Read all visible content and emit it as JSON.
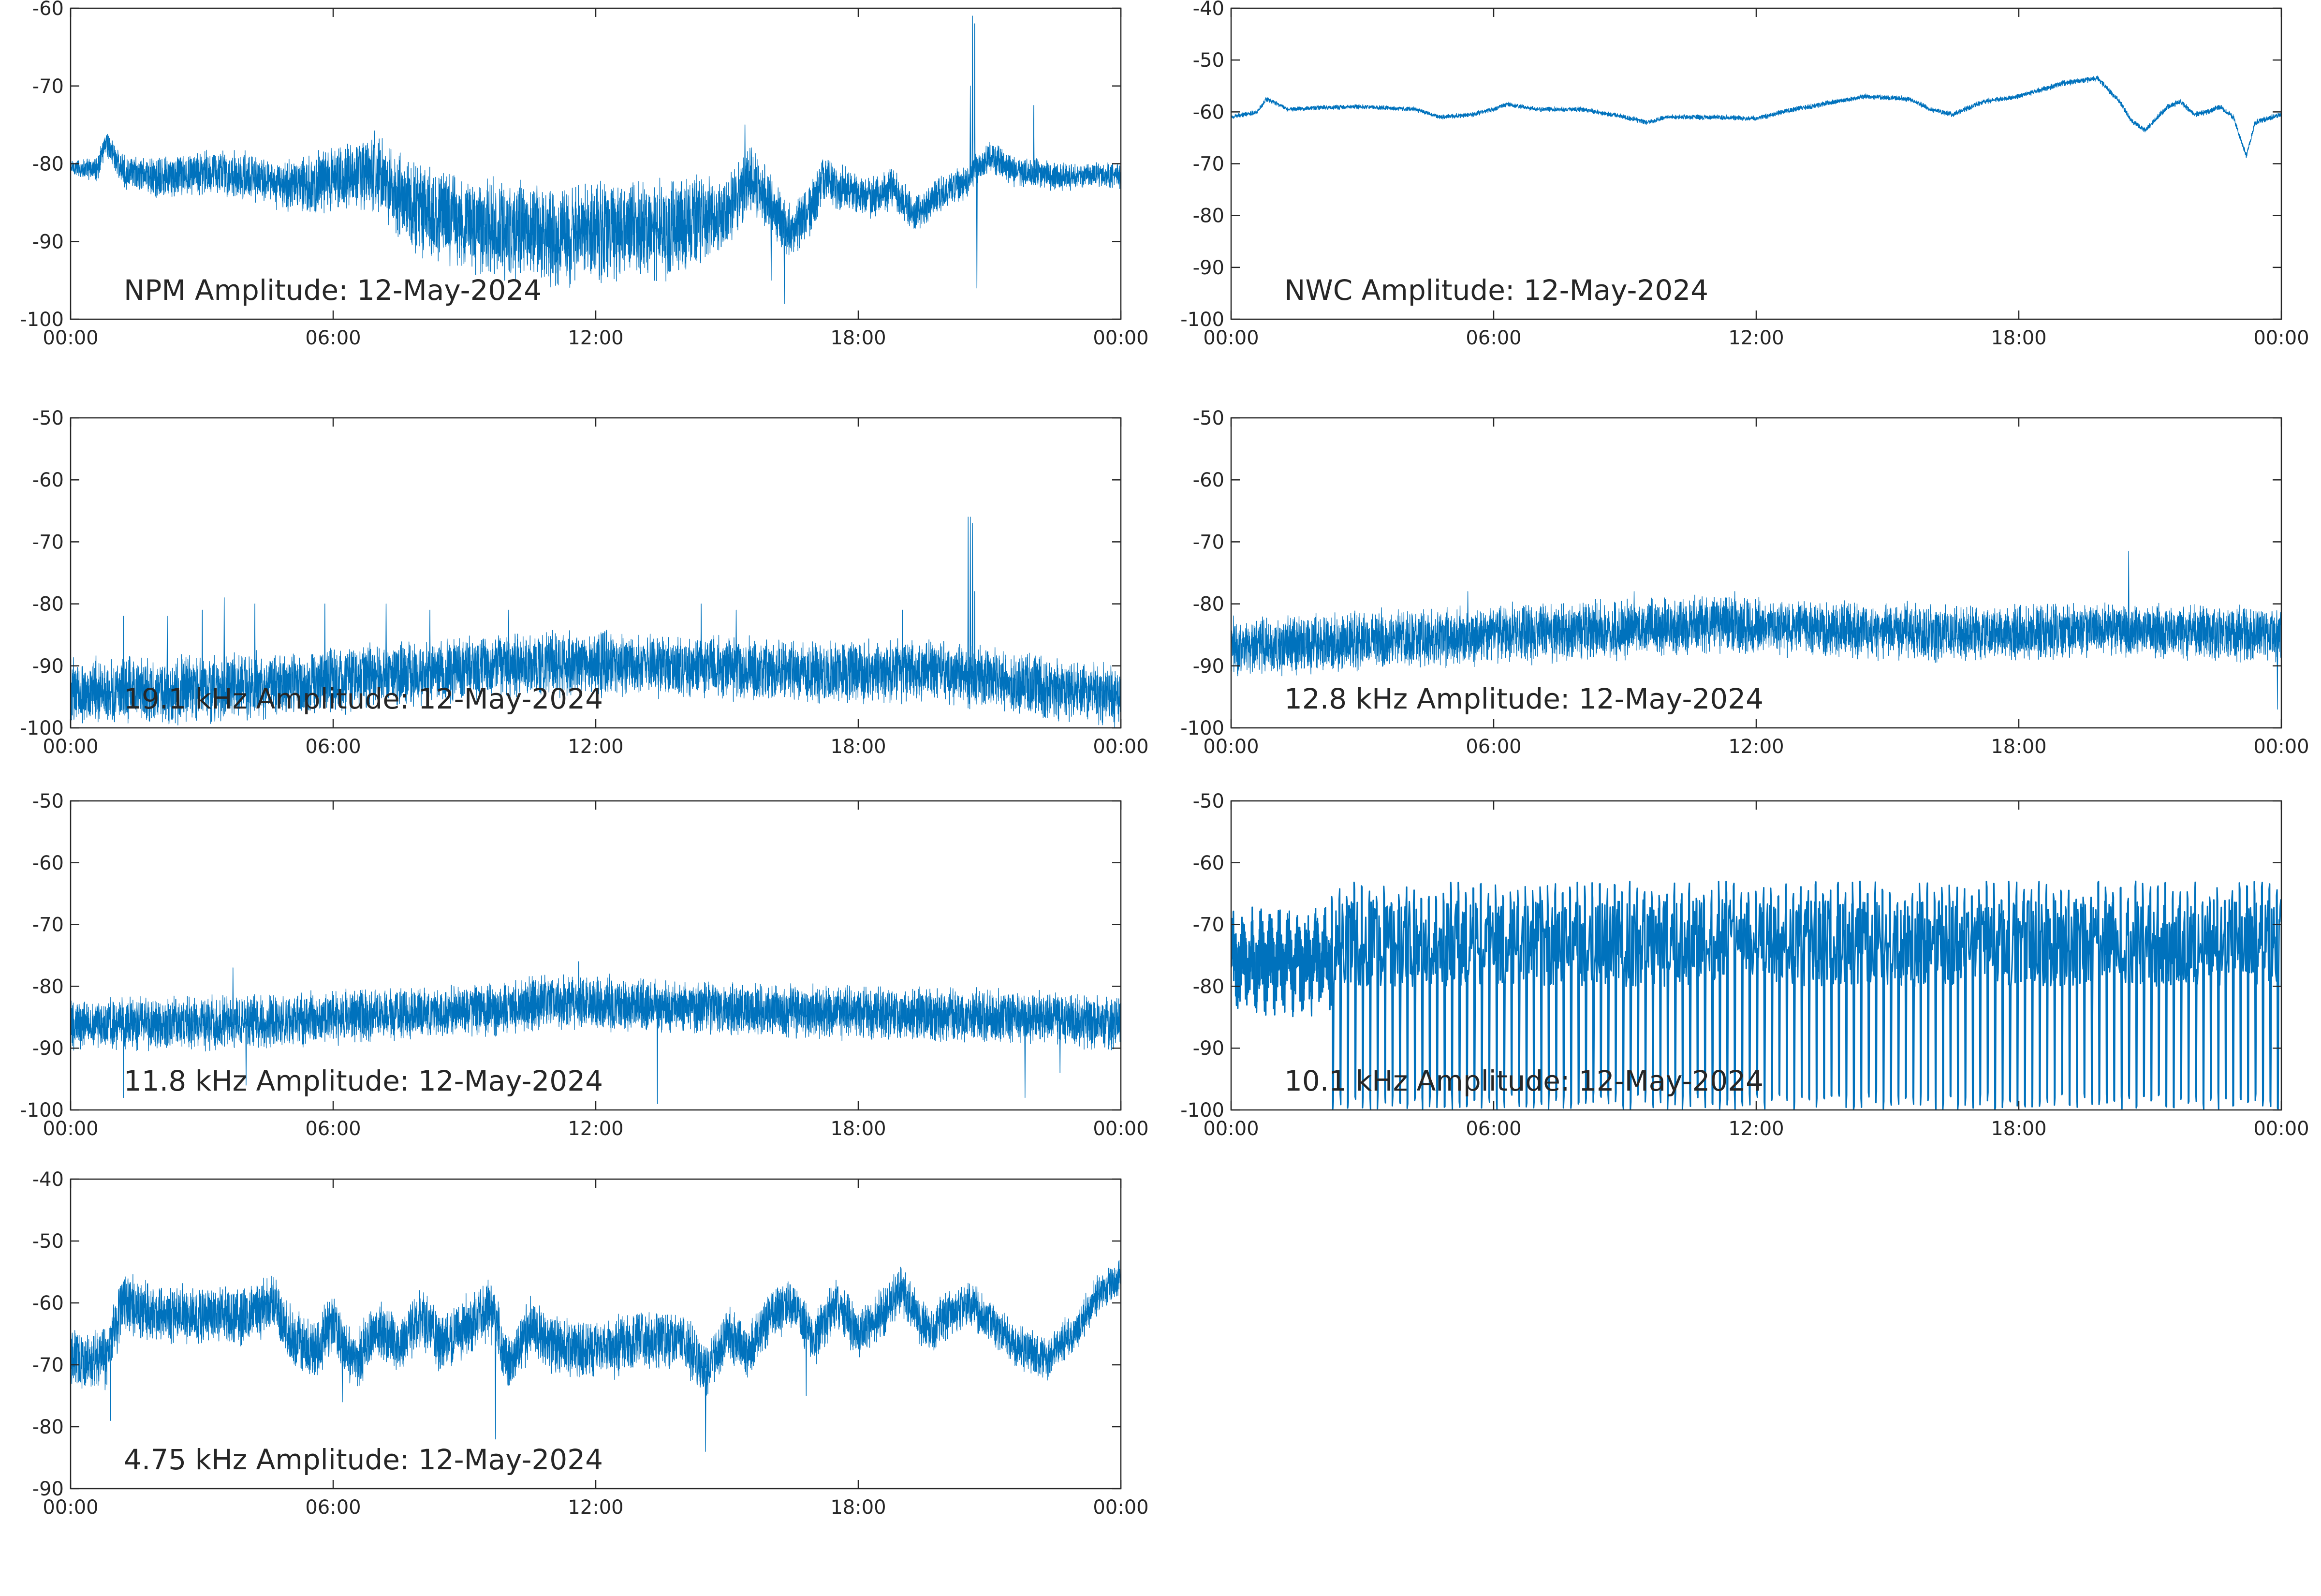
{
  "figure": {
    "line_color": "#0072BD",
    "axis_color": "#262626",
    "background": "#ffffff"
  },
  "chart_data": [
    {
      "id": "npm",
      "type": "line",
      "title": "NPM Amplitude: 12-May-2024",
      "xlabel": "",
      "ylabel": "",
      "xticks": [
        "00:00",
        "06:00",
        "12:00",
        "18:00",
        "00:00"
      ],
      "xlim_hours": [
        0,
        24
      ],
      "ylim": [
        -100,
        -60
      ],
      "yticks": [
        -60,
        -70,
        -80,
        -90,
        -100
      ],
      "grid": false,
      "series": [
        {
          "baseline": [
            [
              0,
              -80.5
            ],
            [
              0.6,
              -80.8
            ],
            [
              0.8,
              -77
            ],
            [
              1.2,
              -81
            ],
            [
              2,
              -82
            ],
            [
              3,
              -81
            ],
            [
              4,
              -81.5
            ],
            [
              5,
              -83
            ],
            [
              6,
              -82
            ],
            [
              7,
              -81
            ],
            [
              7.5,
              -84
            ],
            [
              8.2,
              -86.5
            ],
            [
              9.5,
              -88
            ],
            [
              11,
              -89.5
            ],
            [
              12,
              -89
            ],
            [
              13,
              -88.5
            ],
            [
              14,
              -88
            ],
            [
              15,
              -86.5
            ],
            [
              15.5,
              -82
            ],
            [
              16,
              -85
            ],
            [
              16.4,
              -89
            ],
            [
              16.8,
              -87
            ],
            [
              17.2,
              -82
            ],
            [
              17.8,
              -83.5
            ],
            [
              18.3,
              -84.5
            ],
            [
              18.8,
              -83
            ],
            [
              19.3,
              -86.5
            ],
            [
              19.8,
              -84
            ],
            [
              20.4,
              -82.5
            ],
            [
              21,
              -79
            ],
            [
              21.6,
              -81
            ],
            [
              22.5,
              -81.5
            ],
            [
              24,
              -81.5
            ]
          ],
          "noise": [
            [
              0,
              1
            ],
            [
              2,
              2.5
            ],
            [
              5,
              3
            ],
            [
              8,
              5.5
            ],
            [
              14,
              6
            ],
            [
              15.2,
              4
            ],
            [
              18,
              2.5
            ],
            [
              20.5,
              2
            ],
            [
              24,
              1.5
            ]
          ],
          "spikes": [
            [
              20.6,
              -61
            ],
            [
              20.65,
              -62
            ],
            [
              20.7,
              -96
            ],
            [
              20.55,
              -70
            ],
            [
              22.0,
              -72.5
            ],
            [
              16.3,
              -98
            ],
            [
              15.4,
              -75
            ],
            [
              16.0,
              -95
            ]
          ]
        }
      ]
    },
    {
      "id": "nwc",
      "type": "line",
      "title": "NWC Amplitude: 12-May-2024",
      "xlabel": "",
      "ylabel": "",
      "xticks": [
        "00:00",
        "06:00",
        "12:00",
        "18:00",
        "00:00"
      ],
      "xlim_hours": [
        0,
        24
      ],
      "ylim": [
        -100,
        -40
      ],
      "yticks": [
        -40,
        -50,
        -60,
        -70,
        -80,
        -90,
        -100
      ],
      "grid": false,
      "series": [
        {
          "baseline": [
            [
              0,
              -61
            ],
            [
              0.6,
              -60
            ],
            [
              0.8,
              -57.5
            ],
            [
              1.3,
              -59.5
            ],
            [
              2,
              -59.2
            ],
            [
              3,
              -59
            ],
            [
              4.2,
              -59.5
            ],
            [
              4.8,
              -61
            ],
            [
              5.5,
              -60.5
            ],
            [
              6,
              -59.5
            ],
            [
              6.3,
              -58.5
            ],
            [
              7,
              -59.5
            ],
            [
              8,
              -59.5
            ],
            [
              9,
              -61
            ],
            [
              9.5,
              -62
            ],
            [
              10,
              -61
            ],
            [
              11,
              -61
            ],
            [
              12,
              -61.3
            ],
            [
              12.6,
              -60
            ],
            [
              13.5,
              -58.5
            ],
            [
              14.5,
              -57
            ],
            [
              15.5,
              -57.5
            ],
            [
              16,
              -59.5
            ],
            [
              16.5,
              -60.5
            ],
            [
              17.2,
              -58
            ],
            [
              18,
              -57
            ],
            [
              19,
              -54.5
            ],
            [
              19.8,
              -53.5
            ],
            [
              20.3,
              -58
            ],
            [
              20.6,
              -62
            ],
            [
              20.9,
              -63.5
            ],
            [
              21.4,
              -59
            ],
            [
              21.7,
              -58
            ],
            [
              22,
              -60.5
            ],
            [
              22.3,
              -60
            ],
            [
              22.6,
              -59
            ],
            [
              22.9,
              -61
            ],
            [
              23.2,
              -68.5
            ],
            [
              23.4,
              -62
            ],
            [
              23.8,
              -61
            ],
            [
              24,
              -60.5
            ]
          ],
          "noise": [
            [
              0,
              0.4
            ],
            [
              24,
              0.5
            ]
          ],
          "spikes": []
        }
      ]
    },
    {
      "id": "k191",
      "type": "line",
      "title": "19.1 kHz Amplitude: 12-May-2024",
      "xlabel": "",
      "ylabel": "",
      "xticks": [
        "00:00",
        "06:00",
        "12:00",
        "18:00",
        "00:00"
      ],
      "xlim_hours": [
        0,
        24
      ],
      "ylim": [
        -100,
        -50
      ],
      "yticks": [
        -50,
        -60,
        -70,
        -80,
        -90,
        -100
      ],
      "grid": false,
      "series": [
        {
          "baseline": [
            [
              0,
              -94
            ],
            [
              2,
              -94
            ],
            [
              5,
              -93
            ],
            [
              8,
              -91
            ],
            [
              11,
              -89.5
            ],
            [
              14,
              -90
            ],
            [
              17,
              -91
            ],
            [
              20,
              -91
            ],
            [
              22,
              -93
            ],
            [
              24,
              -95
            ]
          ],
          "noise": [
            [
              0,
              5
            ],
            [
              24,
              4.5
            ]
          ],
          "spikes": [
            [
              20.5,
              -66
            ],
            [
              20.55,
              -66
            ],
            [
              20.6,
              -67
            ],
            [
              20.65,
              -78
            ],
            [
              1.2,
              -82
            ],
            [
              2.2,
              -82
            ],
            [
              3.0,
              -81
            ],
            [
              3.5,
              -79
            ],
            [
              4.2,
              -80
            ],
            [
              5.8,
              -80
            ],
            [
              7.2,
              -80
            ],
            [
              8.2,
              -81
            ],
            [
              10.0,
              -81
            ],
            [
              14.4,
              -80
            ],
            [
              15.2,
              -81
            ],
            [
              19.0,
              -81
            ]
          ]
        }
      ]
    },
    {
      "id": "k128",
      "type": "line",
      "title": "12.8 kHz Amplitude: 12-May-2024",
      "xlabel": "",
      "ylabel": "",
      "xticks": [
        "00:00",
        "06:00",
        "12:00",
        "18:00",
        "00:00"
      ],
      "xlim_hours": [
        0,
        24
      ],
      "ylim": [
        -100,
        -50
      ],
      "yticks": [
        -50,
        -60,
        -70,
        -80,
        -90,
        -100
      ],
      "grid": false,
      "series": [
        {
          "baseline": [
            [
              0,
              -87
            ],
            [
              3,
              -86
            ],
            [
              6,
              -85
            ],
            [
              9,
              -84
            ],
            [
              11,
              -83.5
            ],
            [
              14,
              -84
            ],
            [
              17,
              -85
            ],
            [
              20,
              -84
            ],
            [
              24,
              -85
            ]
          ],
          "noise": [
            [
              0,
              4.5
            ],
            [
              24,
              4
            ]
          ],
          "spikes": [
            [
              20.5,
              -71.5
            ],
            [
              23.9,
              -97
            ],
            [
              5.4,
              -78
            ],
            [
              9.2,
              -78
            ],
            [
              11.5,
              -78
            ]
          ]
        }
      ]
    },
    {
      "id": "k118",
      "type": "line",
      "title": "11.8 kHz Amplitude: 12-May-2024",
      "xlabel": "",
      "ylabel": "",
      "xticks": [
        "00:00",
        "06:00",
        "12:00",
        "18:00",
        "00:00"
      ],
      "xlim_hours": [
        0,
        24
      ],
      "ylim": [
        -100,
        -50
      ],
      "yticks": [
        -50,
        -60,
        -70,
        -80,
        -90,
        -100
      ],
      "grid": false,
      "series": [
        {
          "baseline": [
            [
              0,
              -86
            ],
            [
              3,
              -86
            ],
            [
              6,
              -85
            ],
            [
              9,
              -84
            ],
            [
              11,
              -82.5
            ],
            [
              13,
              -83
            ],
            [
              16,
              -84
            ],
            [
              19,
              -84.5
            ],
            [
              22,
              -85
            ],
            [
              24,
              -86
            ]
          ],
          "noise": [
            [
              0,
              4
            ],
            [
              24,
              4
            ]
          ],
          "spikes": [
            [
              13.4,
              -99
            ],
            [
              12.3,
              -78
            ],
            [
              21.8,
              -98
            ],
            [
              1.2,
              -98
            ],
            [
              4.0,
              -96
            ],
            [
              22.6,
              -94
            ],
            [
              3.7,
              -77
            ],
            [
              11.6,
              -76
            ]
          ]
        }
      ]
    },
    {
      "id": "k101",
      "type": "line",
      "title": "10.1 kHz Amplitude: 12-May-2024",
      "xlabel": "",
      "ylabel": "",
      "xticks": [
        "00:00",
        "06:00",
        "12:00",
        "18:00",
        "00:00"
      ],
      "xlim_hours": [
        0,
        24
      ],
      "ylim": [
        -100,
        -50
      ],
      "yticks": [
        -50,
        -60,
        -70,
        -80,
        -90,
        -100
      ],
      "grid": false,
      "series": [
        {
          "pattern": "pulses",
          "pre_block": [
            [
              0,
              2.3,
              -76
            ]
          ],
          "pulse_start": 2.3,
          "pulse_period_hours": 0.17,
          "pulse_high": -65,
          "pulse_low": -100,
          "mid_level": -73
        }
      ]
    },
    {
      "id": "k475",
      "type": "line",
      "title": "4.75 kHz Amplitude: 12-May-2024",
      "xlabel": "",
      "ylabel": "",
      "xticks": [
        "00:00",
        "06:00",
        "12:00",
        "18:00",
        "00:00"
      ],
      "xlim_hours": [
        0,
        24
      ],
      "ylim": [
        -90,
        -40
      ],
      "yticks": [
        -40,
        -50,
        -60,
        -70,
        -80,
        -90
      ],
      "grid": false,
      "series": [
        {
          "baseline": [
            [
              0,
              -69
            ],
            [
              0.8,
              -69
            ],
            [
              1.2,
              -60
            ],
            [
              2,
              -62
            ],
            [
              3,
              -62
            ],
            [
              4,
              -62
            ],
            [
              4.6,
              -60
            ],
            [
              5,
              -65
            ],
            [
              5.6,
              -68
            ],
            [
              6,
              -63
            ],
            [
              6.5,
              -70
            ],
            [
              7,
              -64
            ],
            [
              7.5,
              -67
            ],
            [
              8,
              -62
            ],
            [
              8.5,
              -67
            ],
            [
              9,
              -64
            ],
            [
              9.6,
              -61
            ],
            [
              10,
              -70
            ],
            [
              10.5,
              -64
            ],
            [
              11,
              -67
            ],
            [
              12,
              -68
            ],
            [
              13,
              -66
            ],
            [
              14,
              -66
            ],
            [
              14.5,
              -71
            ],
            [
              15,
              -65
            ],
            [
              15.5,
              -68
            ],
            [
              16,
              -62
            ],
            [
              16.5,
              -60
            ],
            [
              17,
              -66
            ],
            [
              17.5,
              -60
            ],
            [
              18,
              -65
            ],
            [
              18.5,
              -62
            ],
            [
              19,
              -58
            ],
            [
              19.6,
              -65
            ],
            [
              20,
              -62
            ],
            [
              20.5,
              -60
            ],
            [
              21,
              -63
            ],
            [
              21.6,
              -67
            ],
            [
              22.3,
              -69
            ],
            [
              23,
              -64
            ],
            [
              23.5,
              -58
            ],
            [
              24,
              -56
            ]
          ],
          "noise": [
            [
              0,
              4.5
            ],
            [
              12,
              4.5
            ],
            [
              24,
              3
            ]
          ],
          "spikes": [
            [
              9.7,
              -82
            ],
            [
              14.5,
              -84
            ],
            [
              16.8,
              -75
            ],
            [
              0.9,
              -79
            ],
            [
              6.2,
              -76
            ]
          ]
        }
      ]
    }
  ]
}
